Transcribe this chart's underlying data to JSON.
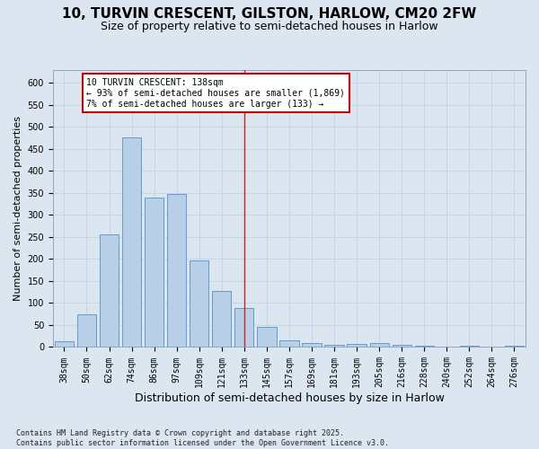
{
  "title1": "10, TURVIN CRESCENT, GILSTON, HARLOW, CM20 2FW",
  "title2": "Size of property relative to semi-detached houses in Harlow",
  "xlabel": "Distribution of semi-detached houses by size in Harlow",
  "ylabel": "Number of semi-detached properties",
  "categories": [
    "38sqm",
    "50sqm",
    "62sqm",
    "74sqm",
    "86sqm",
    "97sqm",
    "109sqm",
    "121sqm",
    "133sqm",
    "145sqm",
    "157sqm",
    "169sqm",
    "181sqm",
    "193sqm",
    "205sqm",
    "216sqm",
    "228sqm",
    "240sqm",
    "252sqm",
    "264sqm",
    "276sqm"
  ],
  "values": [
    14,
    75,
    255,
    477,
    340,
    348,
    197,
    127,
    88,
    46,
    15,
    9,
    6,
    8,
    9,
    5,
    2,
    0,
    3,
    0,
    3
  ],
  "bar_color": "#b8cfe8",
  "bar_edge_color": "#6699cc",
  "highlight_bar_index": 8,
  "highlight_line_color": "#cc2222",
  "annotation_line1": "10 TURVIN CRESCENT: 138sqm",
  "annotation_line2": "← 93% of semi-detached houses are smaller (1,869)",
  "annotation_line3": "7% of semi-detached houses are larger (133) →",
  "annotation_box_color": "#ffffff",
  "annotation_box_edge_color": "#cc0000",
  "grid_color": "#c8d4e8",
  "bg_color": "#dce6f0",
  "footer_text": "Contains HM Land Registry data © Crown copyright and database right 2025.\nContains public sector information licensed under the Open Government Licence v3.0.",
  "ylim": [
    0,
    630
  ],
  "yticks": [
    0,
    50,
    100,
    150,
    200,
    250,
    300,
    350,
    400,
    450,
    500,
    550,
    600
  ],
  "title1_fontsize": 11,
  "title2_fontsize": 9,
  "xlabel_fontsize": 9,
  "ylabel_fontsize": 8,
  "tick_fontsize": 7,
  "annotation_fontsize": 7,
  "footer_fontsize": 6
}
